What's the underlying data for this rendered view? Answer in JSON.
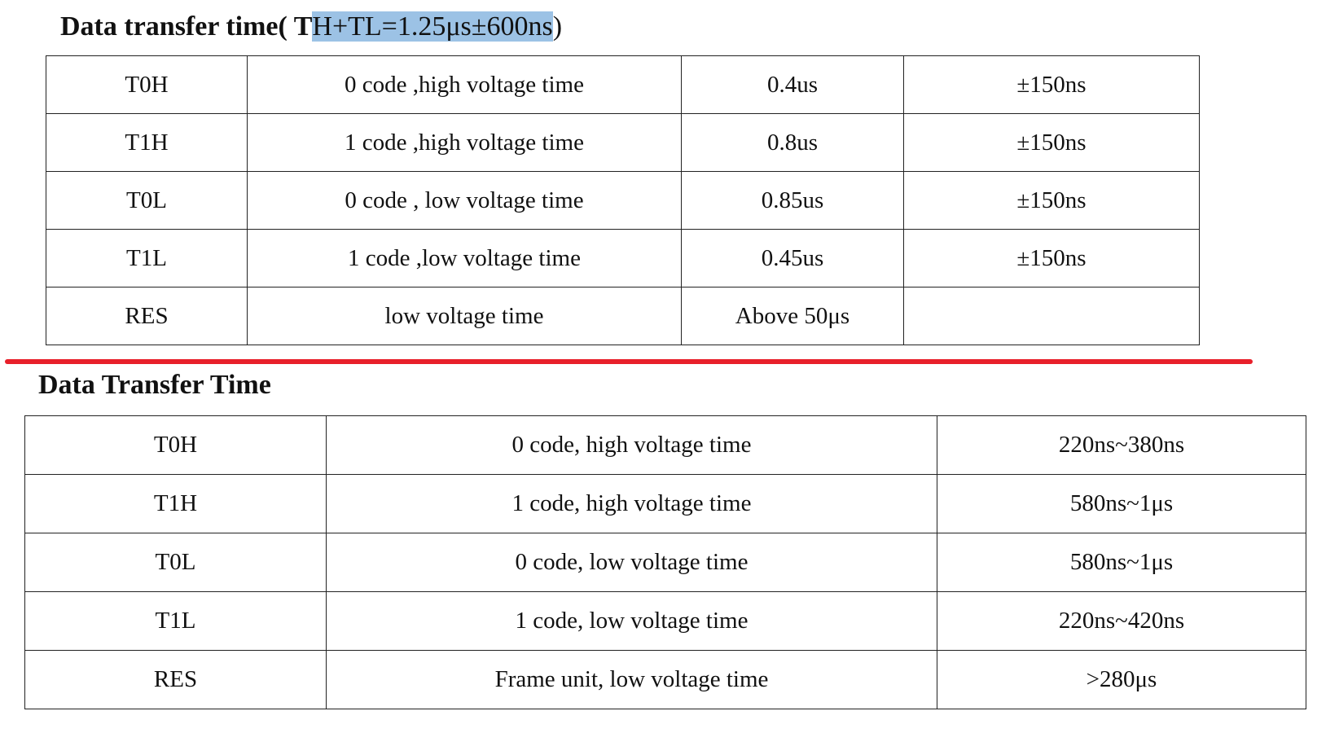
{
  "section1": {
    "title_bold": "Data transfer time( T",
    "title_highlight": "H+TL=1.25μs±600ns",
    "title_tail": ")",
    "rows": [
      {
        "code": "T0H",
        "description": "0 code ,high voltage time",
        "value": "0.4us",
        "tolerance": "±150ns"
      },
      {
        "code": "T1H",
        "description": "1 code ,high voltage time",
        "value": "0.8us",
        "tolerance": "±150ns"
      },
      {
        "code": "T0L",
        "description": "0 code , low voltage time",
        "value": "0.85us",
        "tolerance": "±150ns"
      },
      {
        "code": "T1L",
        "description": "1 code ,low voltage time",
        "value": "0.45us",
        "tolerance": "±150ns"
      },
      {
        "code": "RES",
        "description": "low voltage time",
        "value": "Above 50μs",
        "tolerance": ""
      }
    ]
  },
  "divider_color": "#e8202a",
  "section2": {
    "title": "Data Transfer Time",
    "rows": [
      {
        "code": "T0H",
        "description": "0 code, high voltage time",
        "range": "220ns~380ns"
      },
      {
        "code": "T1H",
        "description": "1 code, high voltage time",
        "range": "580ns~1μs"
      },
      {
        "code": "T0L",
        "description": "0 code, low voltage time",
        "range": "580ns~1μs"
      },
      {
        "code": "T1L",
        "description": "1 code, low voltage time",
        "range": "220ns~420ns"
      },
      {
        "code": "RES",
        "description": "Frame unit, low voltage time",
        "range": ">280μs"
      }
    ]
  }
}
